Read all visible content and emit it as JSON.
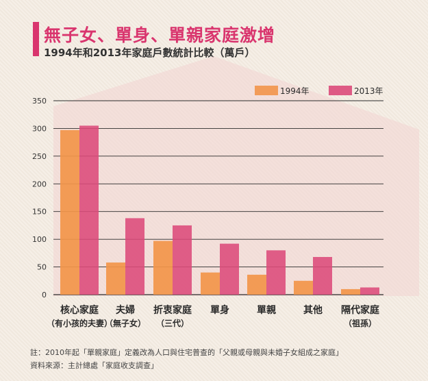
{
  "header": {
    "title": "無子女、單身、單親家庭激增",
    "subtitle": "1994年和2013年家庭戶數統計比較（萬戶）"
  },
  "chart_data": {
    "type": "bar",
    "categories": [
      "核心家庭",
      "夫婦",
      "折衷家庭",
      "單身",
      "單親",
      "其他",
      "隔代家庭"
    ],
    "category_sublabels": [
      "（有小孩的夫妻）",
      "（無子女）",
      "（三代）",
      "",
      "",
      "",
      "（祖孫）"
    ],
    "series": [
      {
        "name": "1994年",
        "values": [
          297,
          58,
          97,
          40,
          36,
          25,
          10
        ],
        "color": "#f2954a"
      },
      {
        "name": "2013年",
        "values": [
          305,
          138,
          125,
          92,
          80,
          68,
          13
        ],
        "color": "#dc4a7a"
      }
    ],
    "yticks": [
      0,
      50,
      100,
      150,
      200,
      250,
      300,
      350
    ],
    "ylim": [
      0,
      350
    ],
    "grid": true,
    "legend_position": "top-right"
  },
  "footer": {
    "note": "註：2010年起「單親家庭」定義改為人口與住宅普查的「父親或母親與未婚子女組成之家庭」",
    "source": "資料來源：主計總處「家庭收支調查」"
  }
}
